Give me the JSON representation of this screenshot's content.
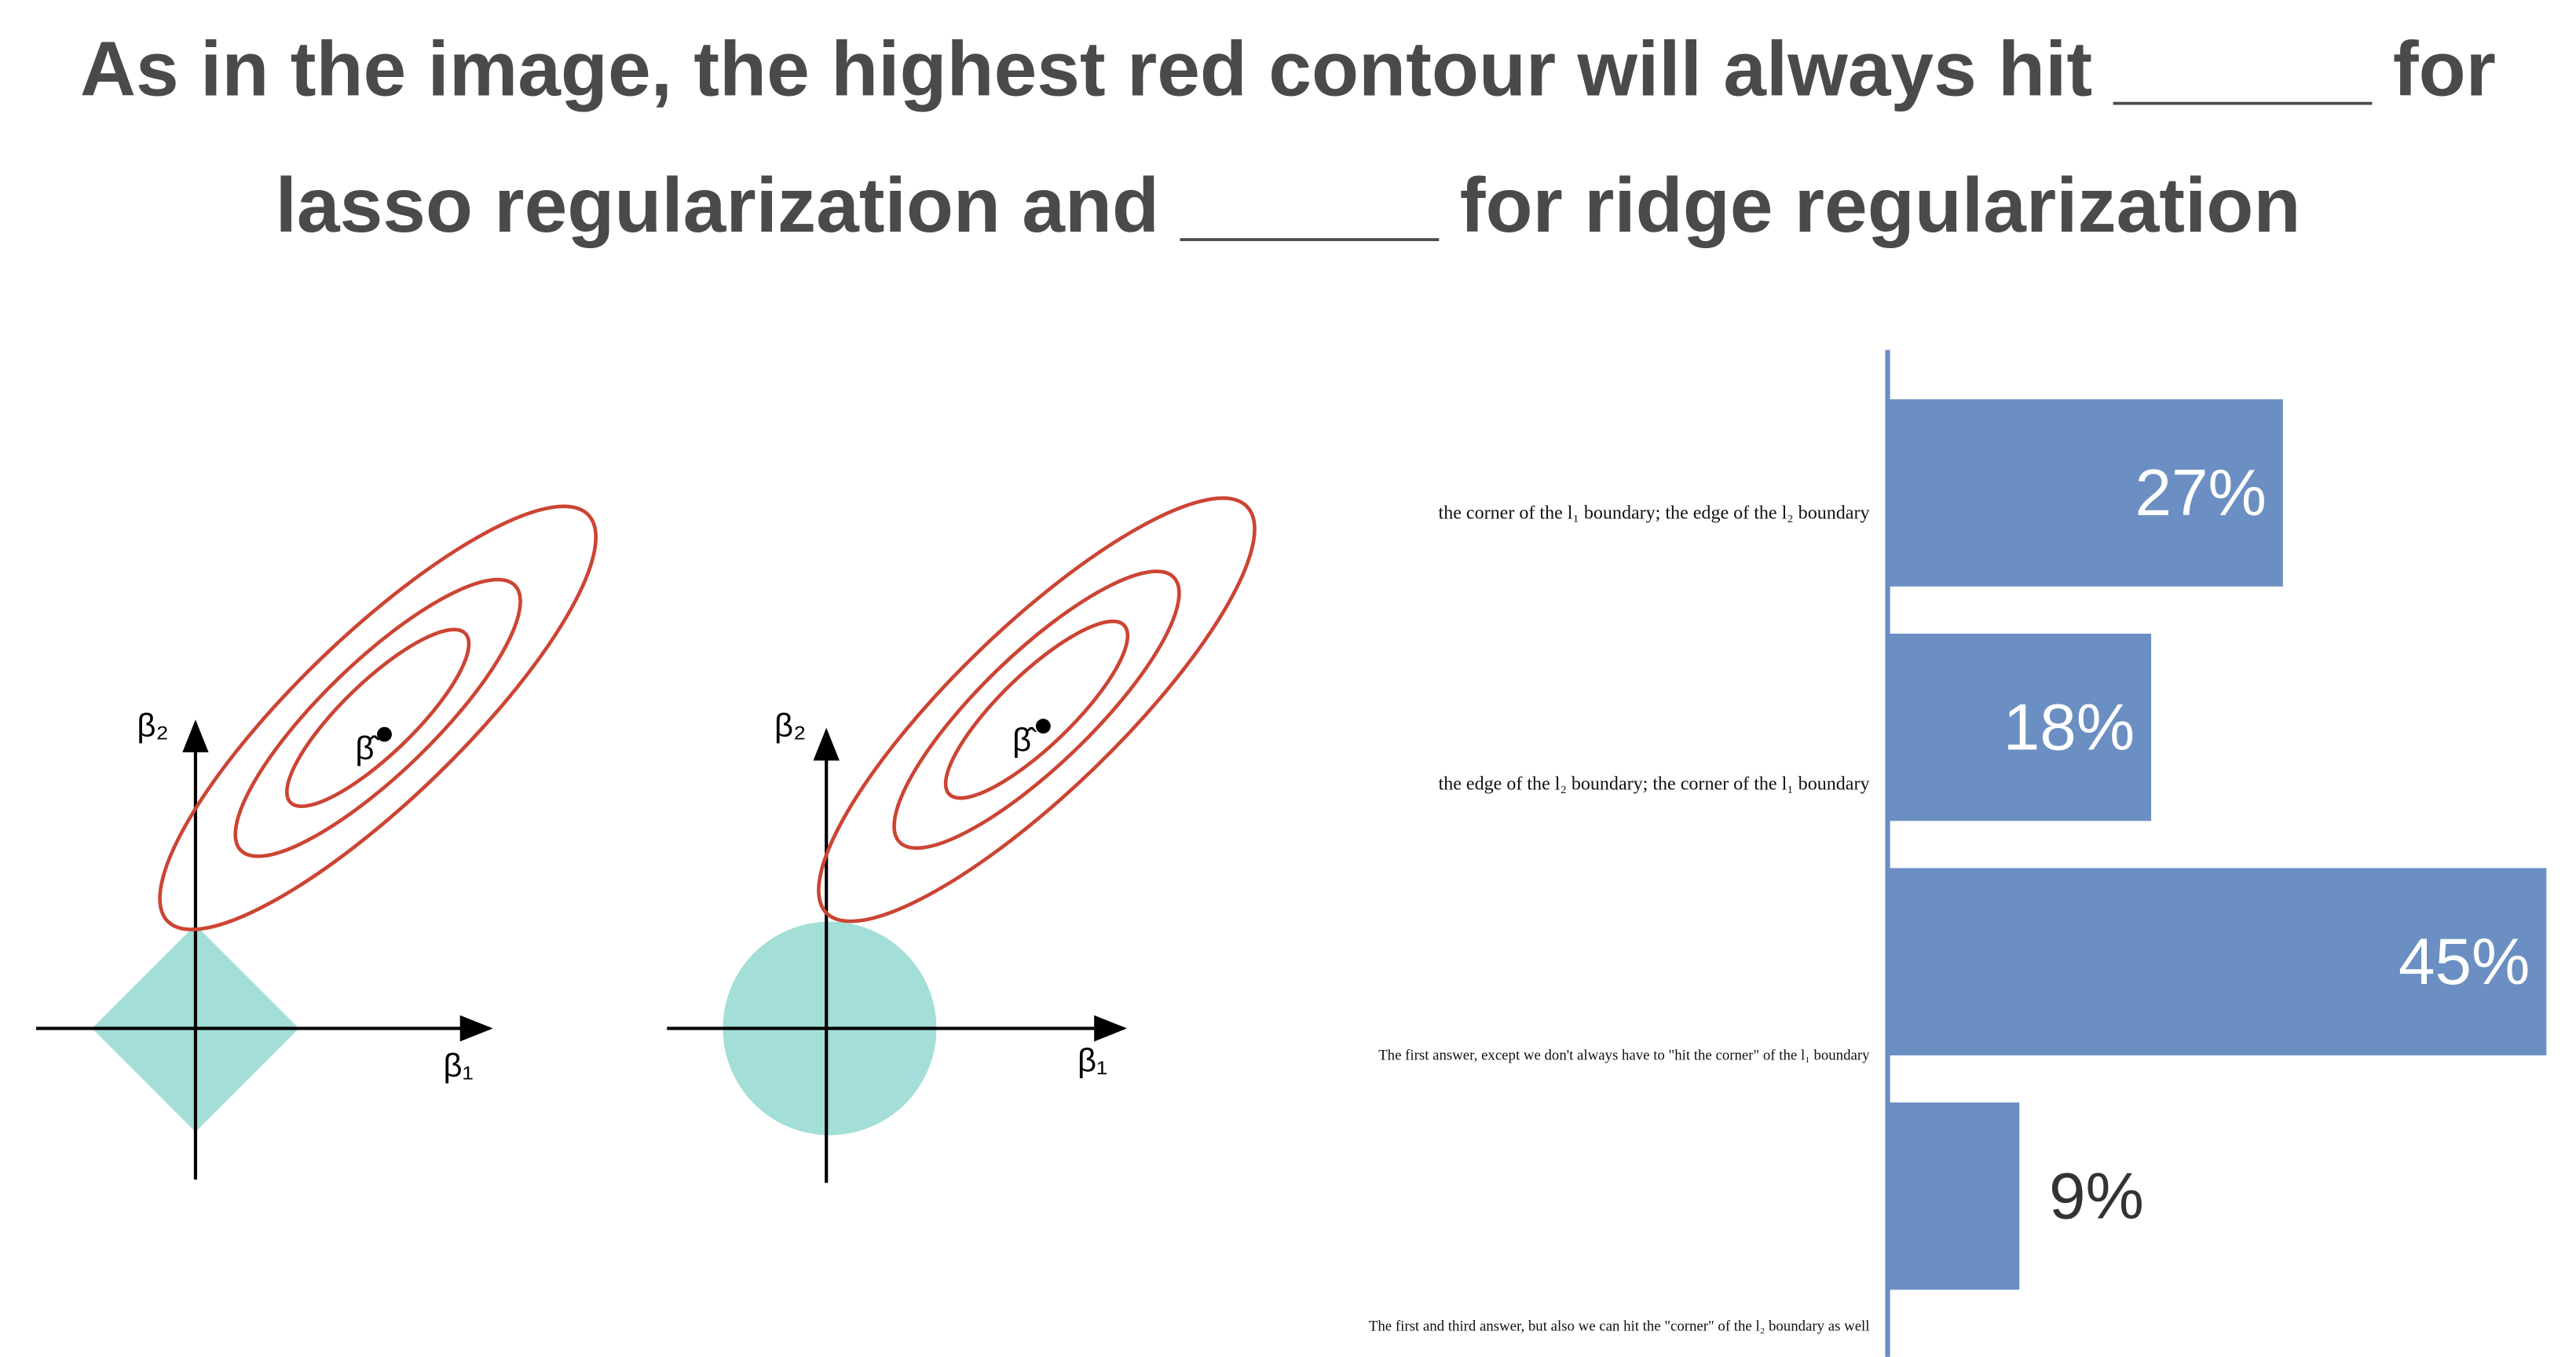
{
  "chart_data": {
    "type": "hbar",
    "title": "As in the image, the highest red contour will always hit ______ for lasso regularization and ______ for ridge regularization",
    "categories": [
      "the corner of the l₁ boundary; the edge of the l₂ boundary",
      "the edge of the l₂ boundary; the corner of the l₁ boundary",
      "The first answer, except we don't always have to \"hit the corner\" of the l₁ boundary",
      "The first and third answer, but also we can hit the \"corner\" of the l₂ boundary as well"
    ],
    "values": [
      27,
      18,
      45,
      9
    ],
    "value_labels": [
      "27%",
      "18%",
      "45%",
      "9%"
    ],
    "color": "#6b8fc2",
    "xlim": [
      0,
      45
    ]
  },
  "diagram": {
    "beta1": "β₁",
    "beta2": "β₂",
    "beta_hat": "β̂"
  }
}
